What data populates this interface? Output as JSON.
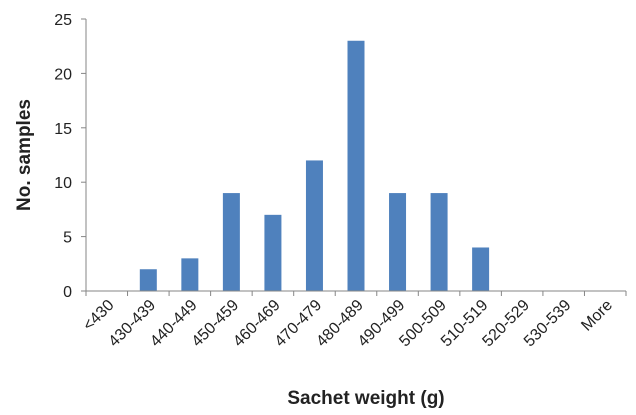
{
  "chart_data": {
    "type": "bar",
    "title": "",
    "xlabel": "Sachet weight (g)",
    "ylabel": "No. samples",
    "categories": [
      "<430",
      "430-439",
      "440-449",
      "450-459",
      "460-469",
      "470-479",
      "480-489",
      "490-499",
      "500-509",
      "510-519",
      "520-529",
      "530-539",
      "More"
    ],
    "values": [
      0,
      2,
      3,
      9,
      7,
      12,
      23,
      9,
      9,
      4,
      0,
      0,
      0
    ],
    "ylim": [
      0,
      25
    ],
    "yticks": [
      0,
      5,
      10,
      15,
      20,
      25
    ],
    "grid": false,
    "legend": "none",
    "bar_color": "#4F81BD",
    "axis_color": "#868686"
  }
}
